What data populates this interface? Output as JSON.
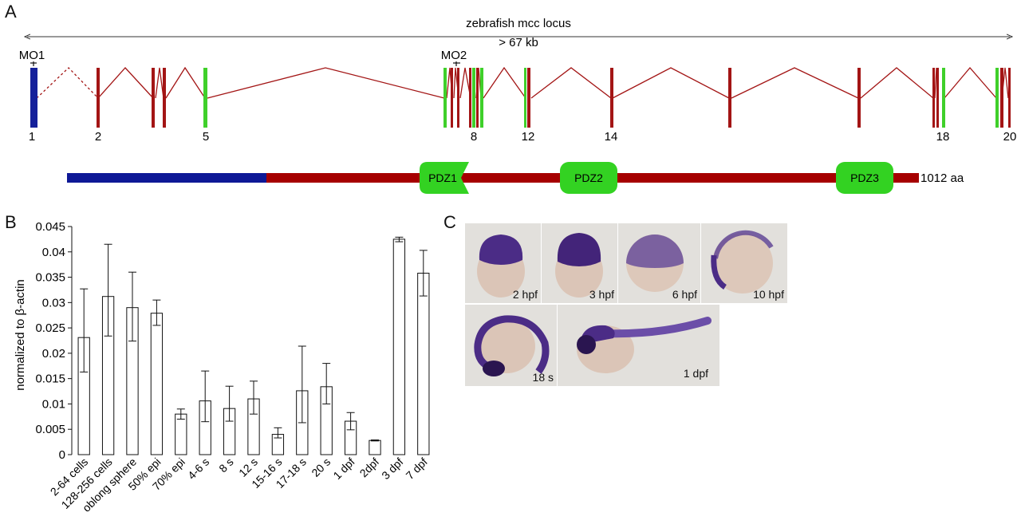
{
  "panels": {
    "a": "A",
    "b": "B",
    "c": "C"
  },
  "gene_map": {
    "title": "zebrafish mcc locus",
    "length": "> 67 kb",
    "morpholinos": [
      "MO1",
      "MO2"
    ],
    "exon_labels": [
      "1",
      "2",
      "5",
      "8",
      "12",
      "14",
      "18",
      "20"
    ],
    "protein_domains": [
      "PDZ1",
      "PDZ2",
      "PDZ3"
    ],
    "protein_length": "1012 aa",
    "colors": {
      "exon": "#a31515",
      "pdz_exon": "#3fd02a",
      "first_exon": "#14209a",
      "protein_body": "#a60000",
      "protein_nterm": "#0e1896",
      "domain_fill": "#33d222"
    }
  },
  "chart_data": {
    "type": "bar",
    "ylabel": "normalized to β-actin",
    "ylim": [
      0,
      0.045
    ],
    "yticks": [
      "0",
      "0.005",
      "0.01",
      "0.015",
      "0.02",
      "0.025",
      "0.03",
      "0.035",
      "0.04",
      "0.045"
    ],
    "categories": [
      "2-64 cells",
      "128-256 cells",
      "oblong sphere",
      "50% epi",
      "70% epi",
      "4-6 s",
      "8 s",
      "12 s",
      "15-16 s",
      "17-18 s",
      "20 s",
      "1 dpf",
      "2dpf",
      "3 dpf",
      "7 dpf"
    ],
    "values": [
      0.0231,
      0.0312,
      0.029,
      0.0279,
      0.008,
      0.0106,
      0.0091,
      0.011,
      0.004,
      0.0126,
      0.0134,
      0.0066,
      0.0028,
      0.0425,
      0.0358
    ],
    "error_upper": [
      0.0327,
      0.0415,
      0.036,
      0.0305,
      0.009,
      0.0165,
      0.0135,
      0.0145,
      0.0053,
      0.0214,
      0.018,
      0.0083,
      0.0029,
      0.0429,
      0.0403
    ],
    "error_lower": [
      0.0163,
      0.0234,
      0.0224,
      0.0255,
      0.007,
      0.0065,
      0.0066,
      0.008,
      0.0033,
      0.0063,
      0.01,
      0.0049,
      0.0027,
      0.042,
      0.0313
    ]
  },
  "embryos": {
    "captions": [
      "2 hpf",
      "3 hpf",
      "6 hpf",
      "10 hpf",
      "18 s",
      "1 dpf"
    ],
    "stain_color": "#4b2c86",
    "yolk_color": "#ddc8ba",
    "background": "#e2e0dc"
  }
}
